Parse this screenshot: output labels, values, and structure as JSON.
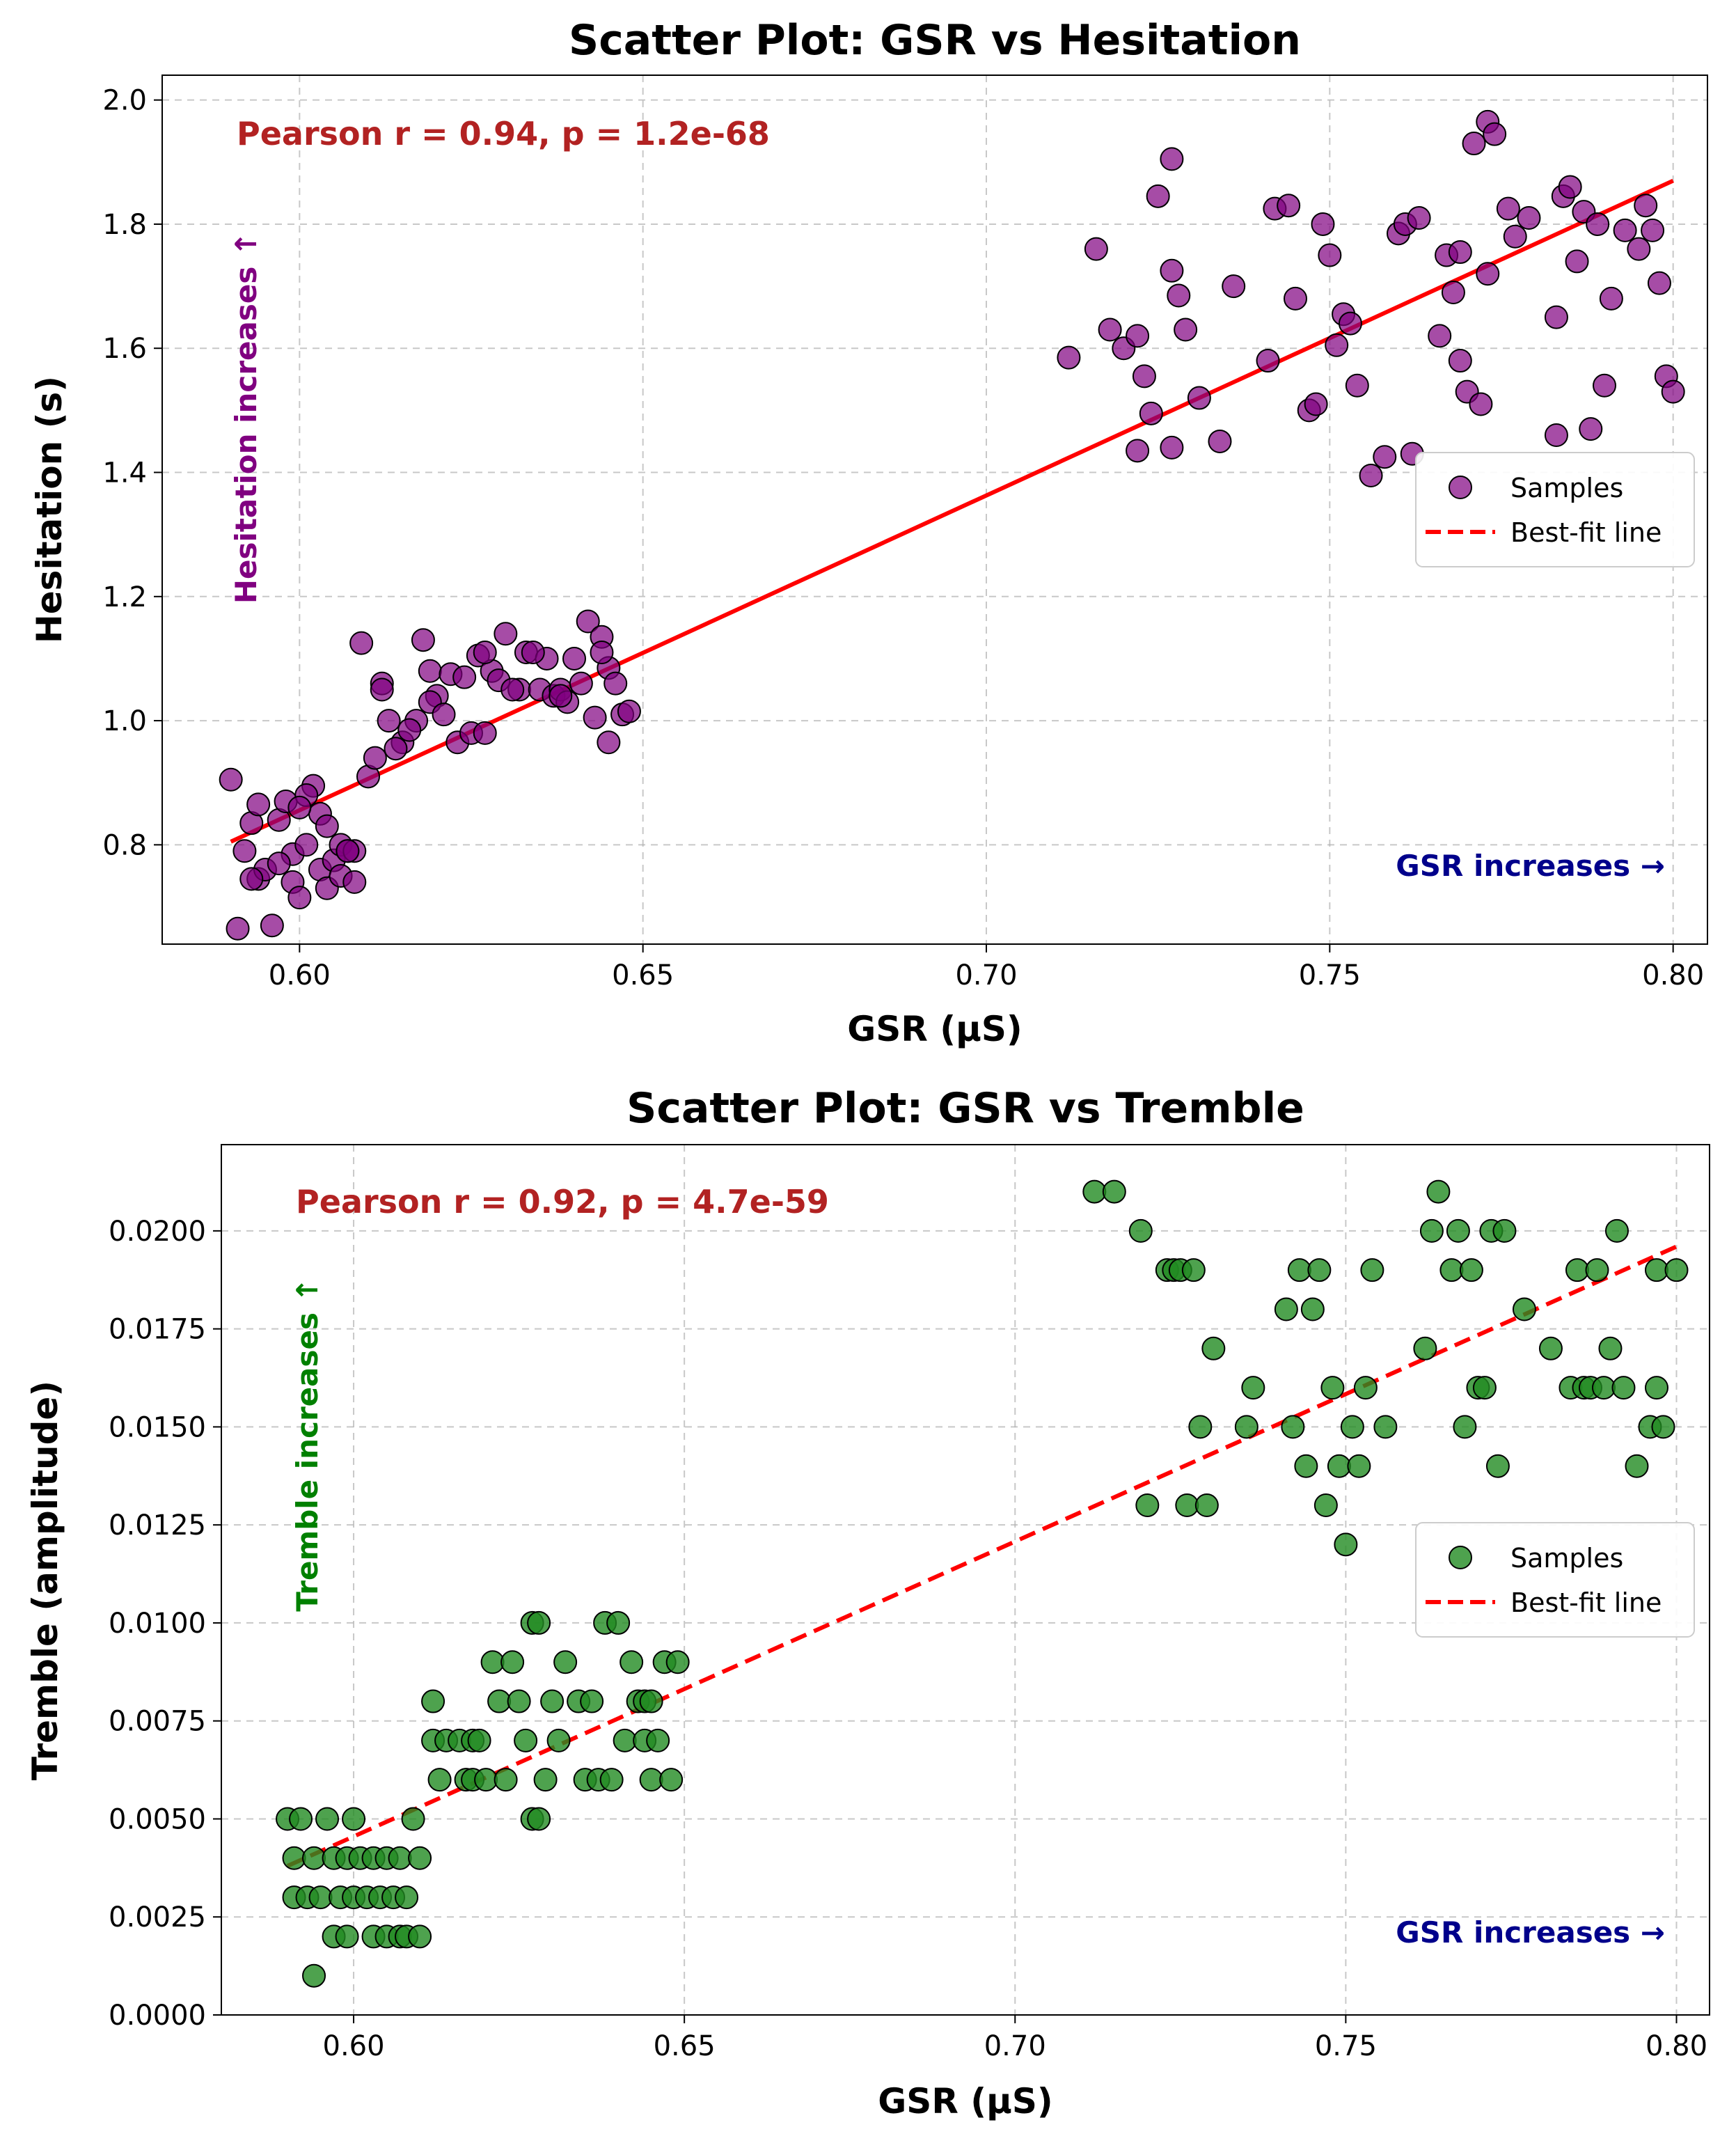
{
  "chart_data": [
    {
      "type": "scatter",
      "title": "Scatter Plot: GSR vs Hesitation",
      "xlabel": "GSR (µS)",
      "ylabel": "Hesitation (s)",
      "xlim": [
        0.58,
        0.805
      ],
      "ylim": [
        0.64,
        2.04
      ],
      "grid": true,
      "xticks": [
        0.6,
        0.65,
        0.7,
        0.75,
        0.8
      ],
      "xtick_labels": [
        "0.60",
        "0.65",
        "0.70",
        "0.75",
        "0.80"
      ],
      "yticks": [
        0.8,
        1.0,
        1.2,
        1.4,
        1.6,
        1.8,
        2.0
      ],
      "ytick_labels": [
        "0.8",
        "1.0",
        "1.2",
        "1.4",
        "1.6",
        "1.8",
        "2.0"
      ],
      "annotation": "Pearson r = 0.94, p = 1.2e-68",
      "side_note": "Hesitation increases ↑",
      "corner_note": "GSR increases →",
      "legend": {
        "placement": "right-middle",
        "samples_label": "Samples",
        "fit_label": "Best-fit line"
      },
      "colors": {
        "marker": "#800080",
        "fit": "#ff0000",
        "annotation": "#b22222",
        "side_note": "#800080",
        "corner_note": "#00008b"
      },
      "fit_line": {
        "style": "solid",
        "x": [
          0.59,
          0.8
        ],
        "y": [
          0.805,
          1.87
        ]
      },
      "points": {
        "x": [
          0.59,
          0.591,
          0.592,
          0.593,
          0.594,
          0.594,
          0.596,
          0.597,
          0.599,
          0.599,
          0.6,
          0.601,
          0.602,
          0.603,
          0.604,
          0.605,
          0.606,
          0.607,
          0.608,
          0.609,
          0.61,
          0.612,
          0.613,
          0.615,
          0.617,
          0.618,
          0.619,
          0.62,
          0.622,
          0.623,
          0.625,
          0.626,
          0.627,
          0.628,
          0.629,
          0.63,
          0.632,
          0.633,
          0.635,
          0.636,
          0.637,
          0.638,
          0.639,
          0.64,
          0.642,
          0.643,
          0.644,
          0.645,
          0.645,
          0.646,
          0.647,
          0.648,
          0.595,
          0.598,
          0.601,
          0.603,
          0.606,
          0.593,
          0.597,
          0.6,
          0.604,
          0.607,
          0.611,
          0.614,
          0.616,
          0.619,
          0.621,
          0.624,
          0.627,
          0.631,
          0.634,
          0.638,
          0.641,
          0.644,
          0.612,
          0.608,
          0.712,
          0.716,
          0.718,
          0.72,
          0.722,
          0.723,
          0.725,
          0.727,
          0.727,
          0.728,
          0.729,
          0.731,
          0.734,
          0.736,
          0.741,
          0.742,
          0.744,
          0.745,
          0.747,
          0.748,
          0.749,
          0.75,
          0.751,
          0.752,
          0.753,
          0.754,
          0.756,
          0.758,
          0.76,
          0.761,
          0.762,
          0.766,
          0.767,
          0.768,
          0.769,
          0.77,
          0.771,
          0.772,
          0.773,
          0.774,
          0.776,
          0.777,
          0.779,
          0.783,
          0.784,
          0.785,
          0.786,
          0.787,
          0.788,
          0.789,
          0.79,
          0.791,
          0.793,
          0.795,
          0.796,
          0.797,
          0.798,
          0.799,
          0.8,
          0.727,
          0.724,
          0.722,
          0.773,
          0.763,
          0.783,
          0.769
        ],
        "y": [
          0.905,
          0.665,
          0.79,
          0.835,
          0.745,
          0.865,
          0.67,
          0.84,
          0.785,
          0.74,
          0.715,
          0.8,
          0.895,
          0.76,
          0.73,
          0.775,
          0.8,
          0.79,
          0.79,
          1.125,
          0.91,
          1.06,
          1.0,
          0.965,
          1.0,
          1.13,
          1.08,
          1.04,
          1.075,
          0.965,
          0.98,
          1.105,
          0.98,
          1.08,
          1.065,
          1.14,
          1.05,
          1.11,
          1.05,
          1.1,
          1.04,
          1.05,
          1.03,
          1.1,
          1.16,
          1.005,
          1.135,
          1.085,
          0.965,
          1.06,
          1.01,
          1.015,
          0.76,
          0.87,
          0.88,
          0.85,
          0.75,
          0.745,
          0.77,
          0.86,
          0.83,
          0.79,
          0.94,
          0.955,
          0.985,
          1.03,
          1.01,
          1.07,
          1.11,
          1.05,
          1.11,
          1.04,
          1.06,
          1.11,
          1.05,
          0.74,
          1.585,
          1.76,
          1.63,
          1.6,
          1.435,
          1.555,
          1.845,
          1.725,
          1.905,
          1.685,
          1.63,
          1.52,
          1.45,
          1.7,
          1.58,
          1.825,
          1.83,
          1.68,
          1.5,
          1.51,
          1.8,
          1.75,
          1.605,
          1.655,
          1.64,
          1.54,
          1.395,
          1.425,
          1.785,
          1.8,
          1.43,
          1.62,
          1.75,
          1.69,
          1.58,
          1.53,
          1.93,
          1.51,
          1.965,
          1.945,
          1.825,
          1.78,
          1.81,
          1.46,
          1.845,
          1.86,
          1.74,
          1.82,
          1.47,
          1.8,
          1.54,
          1.68,
          1.79,
          1.76,
          1.83,
          1.79,
          1.705,
          1.555,
          1.53,
          1.44,
          1.495,
          1.62,
          1.72,
          1.81,
          1.65,
          1.755
        ]
      }
    },
    {
      "type": "scatter",
      "title": "Scatter Plot: GSR vs Tremble",
      "xlabel": "GSR (µS)",
      "ylabel": "Tremble (amplitude)",
      "xlim": [
        0.58,
        0.805
      ],
      "ylim": [
        0.0,
        0.0222
      ],
      "grid": true,
      "xticks": [
        0.6,
        0.65,
        0.7,
        0.75,
        0.8
      ],
      "xtick_labels": [
        "0.60",
        "0.65",
        "0.70",
        "0.75",
        "0.80"
      ],
      "yticks": [
        0.0,
        0.0025,
        0.005,
        0.0075,
        0.01,
        0.0125,
        0.015,
        0.0175,
        0.02
      ],
      "ytick_labels": [
        "0.0000",
        "0.0025",
        "0.0050",
        "0.0075",
        "0.0100",
        "0.0125",
        "0.0150",
        "0.0175",
        "0.0200"
      ],
      "annotation": "Pearson r = 0.92, p = 4.7e-59",
      "side_note": "Tremble increases ↑",
      "corner_note": "GSR increases →",
      "legend": {
        "placement": "right-middle",
        "samples_label": "Samples",
        "fit_label": "Best-fit line"
      },
      "colors": {
        "marker": "#228b22",
        "fit": "#ff0000",
        "annotation": "#b22222",
        "side_note": "#008000",
        "corner_note": "#00008b"
      },
      "fit_line": {
        "style": "dashed",
        "x": [
          0.59,
          0.8
        ],
        "y": [
          0.0038,
          0.0196
        ]
      },
      "points": {
        "x": [
          0.59,
          0.591,
          0.591,
          0.592,
          0.593,
          0.594,
          0.594,
          0.595,
          0.596,
          0.597,
          0.597,
          0.598,
          0.599,
          0.599,
          0.6,
          0.6,
          0.601,
          0.602,
          0.603,
          0.603,
          0.604,
          0.605,
          0.605,
          0.606,
          0.607,
          0.607,
          0.608,
          0.608,
          0.609,
          0.61,
          0.61,
          0.612,
          0.612,
          0.613,
          0.614,
          0.616,
          0.617,
          0.618,
          0.618,
          0.619,
          0.62,
          0.621,
          0.622,
          0.623,
          0.624,
          0.625,
          0.626,
          0.627,
          0.627,
          0.628,
          0.628,
          0.629,
          0.63,
          0.631,
          0.632,
          0.634,
          0.635,
          0.636,
          0.637,
          0.638,
          0.639,
          0.64,
          0.641,
          0.642,
          0.643,
          0.644,
          0.644,
          0.645,
          0.645,
          0.646,
          0.647,
          0.648,
          0.649,
          0.712,
          0.715,
          0.719,
          0.72,
          0.723,
          0.724,
          0.725,
          0.726,
          0.727,
          0.728,
          0.729,
          0.73,
          0.735,
          0.736,
          0.741,
          0.742,
          0.743,
          0.744,
          0.745,
          0.746,
          0.747,
          0.748,
          0.749,
          0.75,
          0.751,
          0.752,
          0.753,
          0.754,
          0.756,
          0.762,
          0.763,
          0.764,
          0.766,
          0.767,
          0.768,
          0.769,
          0.77,
          0.771,
          0.772,
          0.773,
          0.774,
          0.777,
          0.781,
          0.784,
          0.785,
          0.786,
          0.787,
          0.788,
          0.789,
          0.79,
          0.791,
          0.792,
          0.794,
          0.796,
          0.797,
          0.797,
          0.798,
          0.8
        ],
        "y": [
          0.005,
          0.003,
          0.004,
          0.005,
          0.003,
          0.004,
          0.001,
          0.003,
          0.005,
          0.004,
          0.002,
          0.003,
          0.004,
          0.002,
          0.005,
          0.003,
          0.004,
          0.003,
          0.002,
          0.004,
          0.003,
          0.004,
          0.002,
          0.003,
          0.002,
          0.004,
          0.003,
          0.002,
          0.005,
          0.004,
          0.002,
          0.007,
          0.008,
          0.006,
          0.007,
          0.007,
          0.006,
          0.007,
          0.006,
          0.007,
          0.006,
          0.009,
          0.008,
          0.006,
          0.009,
          0.008,
          0.007,
          0.01,
          0.005,
          0.01,
          0.005,
          0.006,
          0.008,
          0.007,
          0.009,
          0.008,
          0.006,
          0.008,
          0.006,
          0.01,
          0.006,
          0.01,
          0.007,
          0.009,
          0.008,
          0.008,
          0.007,
          0.008,
          0.006,
          0.007,
          0.009,
          0.006,
          0.009,
          0.021,
          0.021,
          0.02,
          0.013,
          0.019,
          0.019,
          0.019,
          0.013,
          0.019,
          0.015,
          0.013,
          0.017,
          0.015,
          0.016,
          0.018,
          0.015,
          0.019,
          0.014,
          0.018,
          0.019,
          0.013,
          0.016,
          0.014,
          0.012,
          0.015,
          0.014,
          0.016,
          0.019,
          0.015,
          0.017,
          0.02,
          0.021,
          0.019,
          0.02,
          0.015,
          0.019,
          0.016,
          0.016,
          0.02,
          0.014,
          0.02,
          0.018,
          0.017,
          0.016,
          0.019,
          0.016,
          0.016,
          0.019,
          0.016,
          0.017,
          0.02,
          0.016,
          0.014,
          0.015,
          0.019,
          0.016,
          0.015,
          0.019
        ]
      }
    }
  ]
}
